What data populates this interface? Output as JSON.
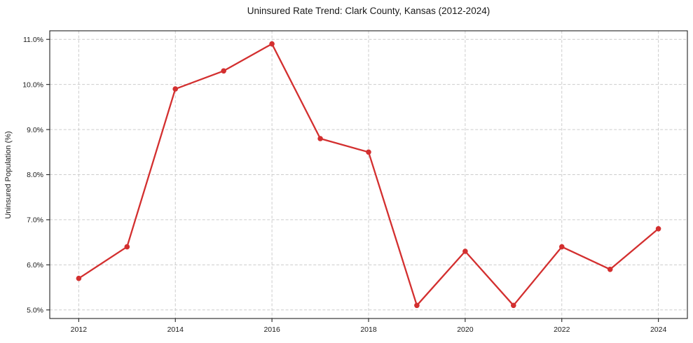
{
  "chart_data": {
    "type": "line",
    "title": "Uninsured Rate Trend: Clark County, Kansas (2012-2024)",
    "xlabel": "",
    "ylabel": "Uninsured Population (%)",
    "x": [
      2012,
      2013,
      2014,
      2015,
      2016,
      2017,
      2018,
      2019,
      2020,
      2021,
      2022,
      2023,
      2024
    ],
    "values": [
      5.7,
      6.4,
      9.9,
      10.3,
      10.9,
      8.8,
      8.5,
      5.1,
      6.3,
      5.1,
      6.4,
      5.9,
      6.8
    ],
    "x_ticks": [
      2012,
      2014,
      2016,
      2018,
      2020,
      2022,
      2024
    ],
    "x_tick_labels": [
      "2012",
      "2014",
      "2016",
      "2018",
      "2020",
      "2022",
      "2024"
    ],
    "y_ticks": [
      5.0,
      6.0,
      7.0,
      8.0,
      9.0,
      10.0,
      11.0
    ],
    "y_tick_labels": [
      "5.0%",
      "6.0%",
      "7.0%",
      "8.0%",
      "9.0%",
      "10.0%",
      "11.0%"
    ],
    "xlim": [
      2011.4,
      2024.6
    ],
    "ylim": [
      4.81,
      11.19
    ],
    "grid": true,
    "legend": "none",
    "line_color": "#d32f2f",
    "marker": "circle",
    "grid_color": "#cccccc",
    "axis_color": "#222222",
    "text_color": "#1a1a1a",
    "background_color": "#ffffff"
  }
}
